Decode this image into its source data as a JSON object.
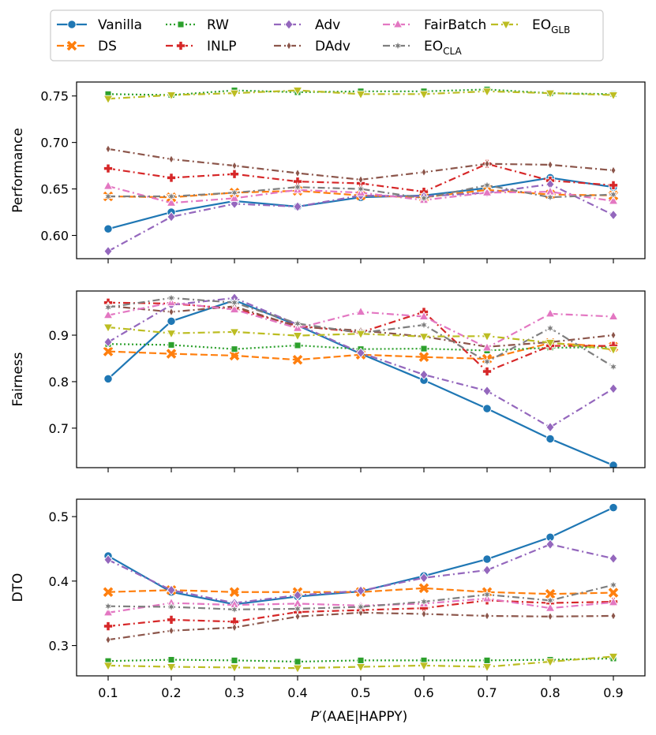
{
  "chart_data": {
    "type": "line",
    "x": [
      0.1,
      0.2,
      0.3,
      0.4,
      0.5,
      0.6,
      0.7,
      0.8,
      0.9
    ],
    "x_tick_labels": [
      "0.1",
      "0.2",
      "0.3",
      "0.4",
      "0.5",
      "0.6",
      "0.7",
      "0.8",
      "0.9"
    ],
    "xlabel_parts": {
      "p": "P",
      "prime": "′",
      "rest": "(AAE|HAPPY)"
    },
    "legend": {
      "placement": "top",
      "columns": 5,
      "entries": [
        {
          "key": "vanilla",
          "name": "Vanilla",
          "sub": ""
        },
        {
          "key": "rw",
          "name": "RW",
          "sub": ""
        },
        {
          "key": "adv",
          "name": "Adv",
          "sub": ""
        },
        {
          "key": "fairbatch",
          "name": "FairBatch",
          "sub": ""
        },
        {
          "key": "eoglb",
          "name": "EO",
          "sub": "GLB"
        },
        {
          "key": "ds",
          "name": "DS",
          "sub": ""
        },
        {
          "key": "inlp",
          "name": "INLP",
          "sub": ""
        },
        {
          "key": "dadv",
          "name": "DAdv",
          "sub": ""
        },
        {
          "key": "eocla",
          "name": "EO",
          "sub": "CLA"
        }
      ]
    },
    "series_styles": {
      "vanilla": {
        "color": "#1f77b4",
        "dash": "",
        "marker": "circle"
      },
      "ds": {
        "color": "#ff7f0e",
        "dash": "9,4",
        "marker": "x"
      },
      "rw": {
        "color": "#2ca02c",
        "dash": "2,3",
        "marker": "square"
      },
      "inlp": {
        "color": "#d62728",
        "dash": "9,4,2,4",
        "marker": "plus"
      },
      "adv": {
        "color": "#9467bd",
        "dash": "9,4,2,4",
        "marker": "diamond"
      },
      "dadv": {
        "color": "#8c564b",
        "dash": "9,4,2,4",
        "marker": "thin_diamond"
      },
      "fairbatch": {
        "color": "#e377c2",
        "dash": "9,4,2,4",
        "marker": "triangle_up"
      },
      "eocla": {
        "color": "#7f7f7f",
        "dash": "9,4,2,4",
        "marker": "star"
      },
      "eoglb": {
        "color": "#bcbd22",
        "dash": "9,4,2,4",
        "marker": "triangle_down"
      }
    },
    "panels": [
      {
        "ylabel": "Performance",
        "ylim": [
          0.575,
          0.765
        ],
        "yticks": [
          0.6,
          0.65,
          0.7,
          0.75
        ],
        "ytick_labels": [
          "0.60",
          "0.65",
          "0.70",
          "0.75"
        ],
        "series": {
          "vanilla": [
            0.607,
            0.625,
            0.637,
            0.631,
            0.641,
            0.643,
            0.651,
            0.662,
            0.652
          ],
          "ds": [
            0.642,
            0.641,
            0.646,
            0.648,
            0.643,
            0.641,
            0.649,
            0.644,
            0.643
          ],
          "rw": [
            0.752,
            0.751,
            0.756,
            0.754,
            0.755,
            0.755,
            0.757,
            0.753,
            0.752
          ],
          "inlp": [
            0.672,
            0.662,
            0.666,
            0.658,
            0.656,
            0.647,
            0.677,
            0.659,
            0.654
          ],
          "adv": [
            0.583,
            0.62,
            0.634,
            0.631,
            0.643,
            0.642,
            0.646,
            0.655,
            0.622
          ],
          "dadv": [
            0.693,
            0.682,
            0.675,
            0.667,
            0.66,
            0.668,
            0.677,
            0.676,
            0.67
          ],
          "fairbatch": [
            0.653,
            0.635,
            0.64,
            0.649,
            0.646,
            0.638,
            0.646,
            0.647,
            0.637
          ],
          "eocla": [
            0.642,
            0.642,
            0.646,
            0.652,
            0.65,
            0.64,
            0.654,
            0.641,
            0.644
          ],
          "eoglb": [
            0.747,
            0.751,
            0.753,
            0.756,
            0.752,
            0.752,
            0.755,
            0.753,
            0.751
          ]
        }
      },
      {
        "ylabel": "Fairness",
        "ylim": [
          0.615,
          0.995
        ],
        "yticks": [
          0.7,
          0.8,
          0.9
        ],
        "ytick_labels": [
          "0.7",
          "0.8",
          "0.9"
        ],
        "series": {
          "vanilla": [
            0.806,
            0.93,
            0.975,
            0.921,
            0.86,
            0.803,
            0.742,
            0.677,
            0.62
          ],
          "ds": [
            0.865,
            0.86,
            0.856,
            0.847,
            0.858,
            0.853,
            0.849,
            0.883,
            0.875
          ],
          "rw": [
            0.881,
            0.879,
            0.87,
            0.878,
            0.87,
            0.871,
            0.867,
            0.873,
            0.874
          ],
          "inlp": [
            0.97,
            0.968,
            0.957,
            0.92,
            0.906,
            0.95,
            0.822,
            0.877,
            0.877
          ],
          "adv": [
            0.885,
            0.965,
            0.98,
            0.923,
            0.862,
            0.815,
            0.78,
            0.702,
            0.785
          ],
          "dadv": [
            0.963,
            0.95,
            0.962,
            0.918,
            0.91,
            0.897,
            0.875,
            0.885,
            0.9
          ],
          "fairbatch": [
            0.943,
            0.97,
            0.955,
            0.915,
            0.95,
            0.94,
            0.873,
            0.946,
            0.94
          ],
          "eocla": [
            0.96,
            0.98,
            0.97,
            0.925,
            0.905,
            0.922,
            0.843,
            0.915,
            0.832
          ],
          "eoglb": [
            0.917,
            0.904,
            0.907,
            0.899,
            0.903,
            0.897,
            0.898,
            0.884,
            0.869
          ]
        }
      },
      {
        "ylabel": "DTO",
        "ylim": [
          0.253,
          0.527
        ],
        "yticks": [
          0.3,
          0.4,
          0.5
        ],
        "ytick_labels": [
          "0.3",
          "0.4",
          "0.5"
        ],
        "series": {
          "vanilla": [
            0.439,
            0.383,
            0.364,
            0.376,
            0.384,
            0.408,
            0.434,
            0.468,
            0.514
          ],
          "ds": [
            0.383,
            0.386,
            0.383,
            0.383,
            0.383,
            0.389,
            0.383,
            0.38,
            0.382
          ],
          "rw": [
            0.276,
            0.278,
            0.277,
            0.275,
            0.277,
            0.277,
            0.277,
            0.278,
            0.28
          ],
          "inlp": [
            0.33,
            0.34,
            0.337,
            0.352,
            0.355,
            0.358,
            0.37,
            0.366,
            0.368
          ],
          "adv": [
            0.433,
            0.386,
            0.366,
            0.378,
            0.385,
            0.405,
            0.417,
            0.457,
            0.435
          ],
          "dadv": [
            0.309,
            0.323,
            0.328,
            0.345,
            0.351,
            0.349,
            0.346,
            0.345,
            0.346
          ],
          "fairbatch": [
            0.351,
            0.366,
            0.363,
            0.365,
            0.362,
            0.365,
            0.373,
            0.358,
            0.367
          ],
          "eocla": [
            0.361,
            0.36,
            0.356,
            0.357,
            0.36,
            0.368,
            0.379,
            0.37,
            0.394
          ],
          "eoglb": [
            0.269,
            0.267,
            0.266,
            0.265,
            0.267,
            0.269,
            0.267,
            0.275,
            0.283
          ]
        }
      }
    ]
  }
}
